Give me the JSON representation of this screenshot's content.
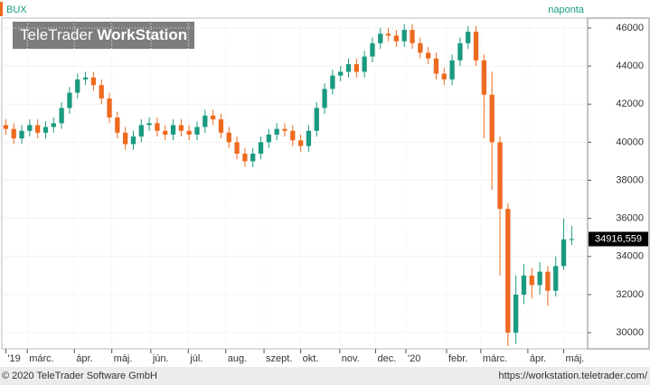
{
  "chart_data": {
    "type": "candlestick",
    "name": "BUX",
    "interval": "naponta",
    "watermark": [
      "TeleTrader",
      "WorkStation"
    ],
    "up_color": "#1a9a80",
    "down_color": "#ee6a1e",
    "open": [
      40900,
      40700,
      40200,
      40600,
      40900,
      40500,
      40800,
      41000,
      41800,
      42600,
      43300,
      43400,
      43000,
      42300,
      41300,
      40500,
      39900,
      40300,
      40900,
      41000,
      40600,
      40400,
      40900,
      40600,
      40400,
      40800,
      41400,
      41200,
      40500,
      40000,
      39400,
      39000,
      39400,
      40000,
      40400,
      40700,
      40600,
      40100,
      39800,
      40600,
      41800,
      42800,
      43500,
      43700,
      44100,
      43700,
      44500,
      45200,
      45700,
      45600,
      45300,
      45900,
      45200,
      44700,
      44400,
      43600,
      43300,
      44300,
      45200,
      45800,
      44300,
      42500,
      40000,
      36500,
      30000,
      32000,
      33000,
      32500,
      33200,
      32200,
      33500,
      34900
    ],
    "high": [
      41200,
      41000,
      40900,
      41200,
      41200,
      41100,
      41300,
      42100,
      42900,
      43600,
      43700,
      43700,
      43300,
      42600,
      41600,
      40800,
      40600,
      41200,
      41300,
      41300,
      40900,
      41200,
      41200,
      40900,
      41100,
      41700,
      41700,
      41500,
      40800,
      40300,
      39700,
      39700,
      40300,
      40700,
      41000,
      41000,
      40900,
      40400,
      40900,
      42100,
      43100,
      43800,
      44000,
      44400,
      44400,
      44800,
      45500,
      46000,
      46000,
      45900,
      46200,
      46200,
      45500,
      45000,
      44700,
      43900,
      44600,
      45500,
      46100,
      46100,
      44600,
      43700,
      40300,
      36800,
      33000,
      33600,
      33400,
      33700,
      33500,
      34000,
      36000,
      35600
    ],
    "low": [
      40400,
      39900,
      39900,
      40300,
      40200,
      40200,
      40500,
      40700,
      41500,
      42300,
      43000,
      42700,
      42000,
      41000,
      40200,
      39600,
      39600,
      40000,
      40600,
      40300,
      40100,
      40100,
      40300,
      40100,
      40100,
      40500,
      40900,
      40200,
      39700,
      39100,
      38700,
      38700,
      39100,
      39700,
      40100,
      40300,
      39800,
      39500,
      39500,
      40300,
      41500,
      42500,
      43200,
      43400,
      43400,
      43400,
      44200,
      44900,
      45300,
      45000,
      45000,
      44900,
      44400,
      44100,
      43300,
      43000,
      43000,
      44000,
      44900,
      44000,
      40200,
      37500,
      33000,
      29300,
      29400,
      31500,
      31800,
      32000,
      31400,
      31900,
      33300,
      34600
    ],
    "close": [
      40700,
      40200,
      40600,
      40900,
      40500,
      40800,
      41000,
      41800,
      42600,
      43300,
      43400,
      43000,
      42300,
      41300,
      40500,
      39900,
      40300,
      40900,
      41000,
      40600,
      40400,
      40900,
      40600,
      40400,
      40800,
      41400,
      41200,
      40500,
      40000,
      39400,
      39000,
      39400,
      40000,
      40400,
      40700,
      40600,
      40100,
      39800,
      40600,
      41800,
      42800,
      43500,
      43700,
      44100,
      43700,
      44500,
      45200,
      45700,
      45600,
      45300,
      45900,
      45200,
      44700,
      44400,
      43600,
      43300,
      44300,
      45200,
      45800,
      44300,
      42500,
      40000,
      36500,
      30000,
      32000,
      33000,
      32500,
      33200,
      32200,
      33500,
      34900,
      34916.559
    ],
    "last_price": 34916.559,
    "last_price_label": "34916,559",
    "xlim": [
      -0.5,
      73
    ],
    "xticks": [
      {
        "value": 0,
        "label": "'19"
      },
      {
        "value": 2.7,
        "label": "márc."
      },
      {
        "value": 8.6,
        "label": "ápr."
      },
      {
        "value": 13.3,
        "label": "máj."
      },
      {
        "value": 18.2,
        "label": "jún."
      },
      {
        "value": 22.9,
        "label": "júl."
      },
      {
        "value": 27.6,
        "label": "aug."
      },
      {
        "value": 32.4,
        "label": "szept."
      },
      {
        "value": 37,
        "label": "okt."
      },
      {
        "value": 41.9,
        "label": "nov."
      },
      {
        "value": 46.4,
        "label": "dec."
      },
      {
        "value": 50.2,
        "label": "'20"
      },
      {
        "value": 55.3,
        "label": "febr."
      },
      {
        "value": 59.6,
        "label": "márc."
      },
      {
        "value": 65.5,
        "label": "ápr."
      },
      {
        "value": 70,
        "label": "máj."
      }
    ],
    "ylim": [
      29150,
      46520
    ],
    "yticks": [
      30000,
      32000,
      34000,
      36000,
      38000,
      40000,
      42000,
      44000,
      46000
    ],
    "grid": true
  },
  "footer": {
    "copyright": "© 2020 TeleTrader Software GmbH",
    "url": "https://workstation.teletrader.com/"
  }
}
